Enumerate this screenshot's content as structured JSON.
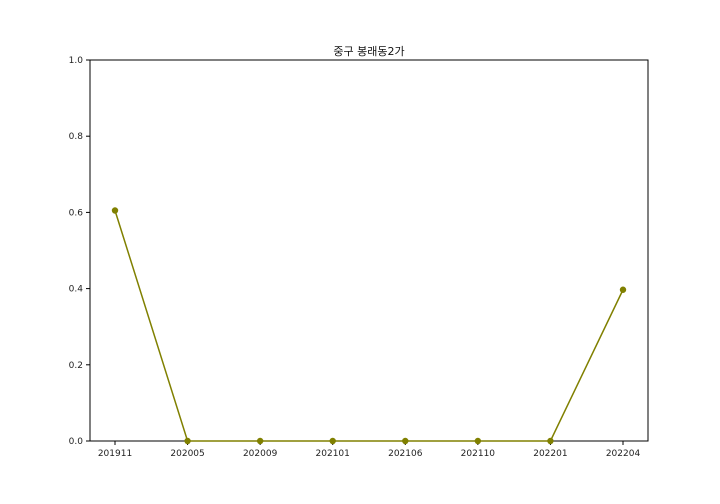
{
  "chart_data": {
    "type": "line",
    "title": "중구 봉래동2가",
    "xlabel": "",
    "ylabel": "",
    "categories": [
      "201911",
      "202005",
      "202009",
      "202101",
      "202106",
      "202110",
      "202201",
      "202204"
    ],
    "series": [
      {
        "values": [
          0.605,
          0.0,
          0.0,
          0.0,
          0.0,
          0.0,
          0.0,
          0.397
        ],
        "color": "#808000",
        "marker": "circle"
      }
    ],
    "ylim": [
      0.0,
      1.0
    ],
    "yticks": [
      "0.0",
      "0.2",
      "0.4",
      "0.6",
      "0.8",
      "1.0"
    ],
    "grid": false,
    "legend": "none"
  }
}
